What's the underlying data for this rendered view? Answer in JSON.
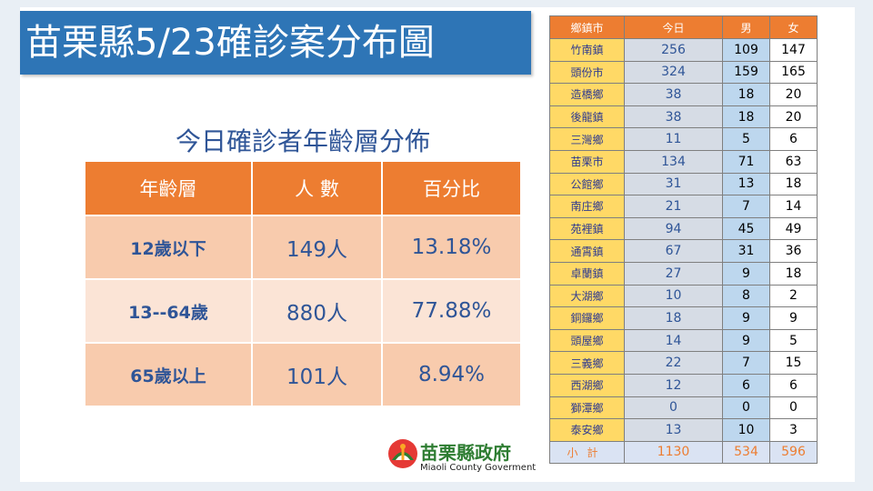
{
  "title": "苗栗縣5/23確診案分布圖",
  "age_section": {
    "heading": "今日確診者年齡層分佈",
    "columns": [
      "年齡層",
      "人 數",
      "百分比"
    ],
    "rows": [
      {
        "group": "12歲以下",
        "count": "149人",
        "percent": "13.18%"
      },
      {
        "group": "13--64歲",
        "count": "880人",
        "percent": "77.88%"
      },
      {
        "group": "65歲以上",
        "count": "101人",
        "percent": "8.94%"
      }
    ]
  },
  "town_table": {
    "columns": [
      "鄉鎮市",
      "今日",
      "男",
      "女"
    ],
    "rows": [
      {
        "name": "竹南鎮",
        "today": "256",
        "male": "109",
        "female": "147"
      },
      {
        "name": "頭份市",
        "today": "324",
        "male": "159",
        "female": "165"
      },
      {
        "name": "造橋鄉",
        "today": "38",
        "male": "18",
        "female": "20"
      },
      {
        "name": "後龍鎮",
        "today": "38",
        "male": "18",
        "female": "20"
      },
      {
        "name": "三灣鄉",
        "today": "11",
        "male": "5",
        "female": "6"
      },
      {
        "name": "苗栗市",
        "today": "134",
        "male": "71",
        "female": "63"
      },
      {
        "name": "公館鄉",
        "today": "31",
        "male": "13",
        "female": "18"
      },
      {
        "name": "南庄鄉",
        "today": "21",
        "male": "7",
        "female": "14"
      },
      {
        "name": "苑裡鎮",
        "today": "94",
        "male": "45",
        "female": "49"
      },
      {
        "name": "通霄鎮",
        "today": "67",
        "male": "31",
        "female": "36"
      },
      {
        "name": "卓蘭鎮",
        "today": "27",
        "male": "9",
        "female": "18"
      },
      {
        "name": "大湖鄉",
        "today": "10",
        "male": "8",
        "female": "2"
      },
      {
        "name": "銅鑼鄉",
        "today": "18",
        "male": "9",
        "female": "9"
      },
      {
        "name": "頭屋鄉",
        "today": "14",
        "male": "9",
        "female": "5"
      },
      {
        "name": "三義鄉",
        "today": "22",
        "male": "7",
        "female": "15"
      },
      {
        "name": "西湖鄉",
        "today": "12",
        "male": "6",
        "female": "6"
      },
      {
        "name": "獅潭鄉",
        "today": "0",
        "male": "0",
        "female": "0"
      },
      {
        "name": "泰安鄉",
        "today": "13",
        "male": "10",
        "female": "3"
      }
    ],
    "total": {
      "name": "小計",
      "today": "1130",
      "male": "534",
      "female": "596"
    }
  },
  "logo": {
    "name": "苗栗縣政府",
    "english": "Miaoli County Goverment",
    "icon": "miaoli-county-emblem-icon"
  },
  "colors": {
    "title_bar": "#2e75b6",
    "header_orange": "#ed7d31",
    "town_name_yellow": "#ffd966",
    "text_blue": "#2f5597"
  }
}
